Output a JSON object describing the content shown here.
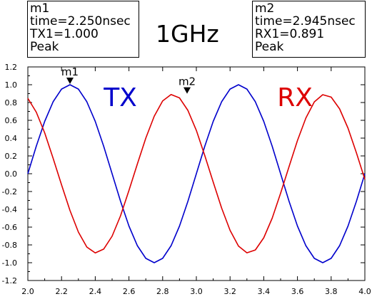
{
  "chart_data": {
    "type": "line",
    "title": "1GHz",
    "xlabel": "",
    "ylabel": "",
    "xlim": [
      2.0,
      4.0
    ],
    "ylim": [
      -1.2,
      1.2
    ],
    "x_ticks": [
      "2.0",
      "2.2",
      "2.4",
      "2.6",
      "2.8",
      "3.0",
      "3.2",
      "3.4",
      "3.6",
      "3.8",
      "4.0"
    ],
    "y_ticks": [
      "1.2",
      "1.0",
      "0.8",
      "0.6",
      "0.4",
      "0.2",
      "0.0",
      "-0.2",
      "-0.4",
      "-0.6",
      "-0.8",
      "-1.0",
      "-1.2"
    ],
    "x_tick_values": [
      2.0,
      2.2,
      2.4,
      2.6,
      2.8,
      3.0,
      3.2,
      3.4,
      3.6,
      3.8,
      4.0
    ],
    "y_tick_values": [
      1.2,
      1.0,
      0.8,
      0.6,
      0.4,
      0.2,
      0.0,
      -0.2,
      -0.4,
      -0.6,
      -0.8,
      -1.0,
      -1.2
    ],
    "grid": false,
    "series": [
      {
        "name": "TX",
        "color": "#0000cc",
        "x": [
          2.0,
          2.05,
          2.1,
          2.15,
          2.2,
          2.25,
          2.3,
          2.35,
          2.4,
          2.45,
          2.5,
          2.55,
          2.6,
          2.65,
          2.7,
          2.75,
          2.8,
          2.85,
          2.9,
          2.95,
          3.0,
          3.05,
          3.1,
          3.15,
          3.2,
          3.25,
          3.3,
          3.35,
          3.4,
          3.45,
          3.5,
          3.55,
          3.6,
          3.65,
          3.7,
          3.75,
          3.8,
          3.85,
          3.9,
          3.95,
          4.0
        ],
        "y": [
          0.0,
          0.309,
          0.588,
          0.809,
          0.951,
          1.0,
          0.951,
          0.809,
          0.588,
          0.309,
          0.0,
          -0.309,
          -0.588,
          -0.809,
          -0.951,
          -1.0,
          -0.951,
          -0.809,
          -0.588,
          -0.309,
          0.0,
          0.309,
          0.588,
          0.809,
          0.951,
          1.0,
          0.951,
          0.809,
          0.588,
          0.309,
          0.0,
          -0.309,
          -0.588,
          -0.809,
          -0.951,
          -1.0,
          -0.951,
          -0.809,
          -0.588,
          -0.309,
          0.0
        ]
      },
      {
        "name": "RX",
        "color": "#dd0000",
        "x": [
          2.0,
          2.05,
          2.1,
          2.15,
          2.2,
          2.25,
          2.3,
          2.35,
          2.4,
          2.45,
          2.5,
          2.55,
          2.6,
          2.65,
          2.7,
          2.75,
          2.8,
          2.85,
          2.9,
          2.95,
          3.0,
          3.05,
          3.1,
          3.15,
          3.2,
          3.25,
          3.3,
          3.35,
          3.4,
          3.45,
          3.5,
          3.55,
          3.6,
          3.65,
          3.7,
          3.75,
          3.8,
          3.85,
          3.9,
          3.95,
          4.0
        ],
        "y": [
          0.847,
          0.692,
          0.459,
          0.173,
          -0.125,
          -0.413,
          -0.656,
          -0.824,
          -0.89,
          -0.847,
          -0.702,
          -0.473,
          -0.188,
          0.11,
          0.4,
          0.646,
          0.818,
          0.89,
          0.852,
          0.711,
          0.487,
          0.204,
          -0.094,
          -0.386,
          -0.636,
          -0.813,
          -0.889,
          -0.857,
          -0.72,
          -0.5,
          -0.219,
          0.079,
          0.373,
          0.626,
          0.807,
          0.888,
          0.861,
          0.729,
          0.512,
          0.234,
          -0.063
        ]
      }
    ],
    "annotations": [
      {
        "text": "TX",
        "color": "#0000cc",
        "x": 2.45,
        "y": 0.76
      },
      {
        "text": "RX",
        "color": "#dd0000",
        "x": 3.48,
        "y": 0.76
      }
    ],
    "markers": [
      {
        "name": "m1",
        "x": 2.25,
        "y": 1.0,
        "lines": [
          "m1",
          "time=2.250nsec",
          "TX1=1.000",
          "Peak"
        ]
      },
      {
        "name": "m2",
        "x": 2.945,
        "y": 0.891,
        "lines": [
          "m2",
          "time=2.945nsec",
          "RX1=0.891",
          "Peak"
        ]
      }
    ]
  }
}
